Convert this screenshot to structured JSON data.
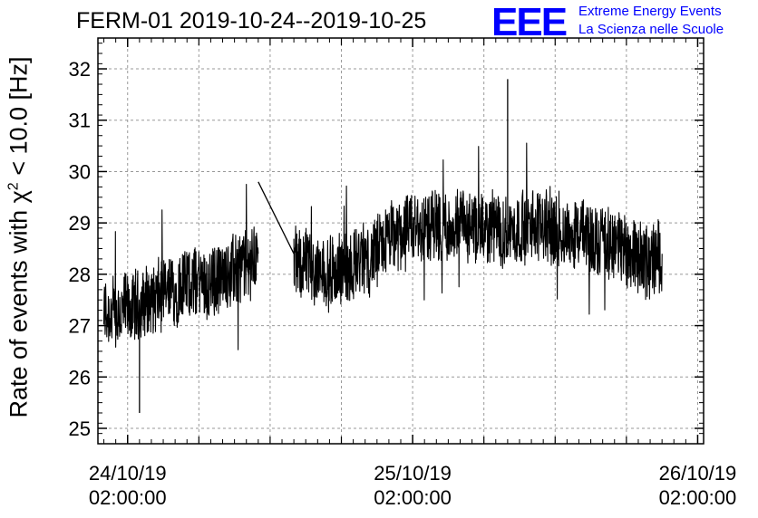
{
  "title": "FERM-01 2019-10-24--2019-10-25",
  "logo": {
    "mark": "EEE",
    "line1": "Extreme Energy Events",
    "line2": "La Scienza nelle Scuole",
    "color": "#0000ff"
  },
  "chart_data": {
    "type": "line",
    "title": "FERM-01 2019-10-24--2019-10-25",
    "xlabel": "",
    "ylabel_parts": [
      "Rate of events with χ",
      "2",
      " < 10.0 [Hz]"
    ],
    "ylim": [
      24.7,
      32.6
    ],
    "xlim": [
      "2019-10-23 23:30:00",
      "2019-10-26 02:30:00"
    ],
    "grid": true,
    "yticks": [
      25,
      26,
      27,
      28,
      29,
      30,
      31,
      32
    ],
    "xticks": [
      {
        "t": "2019-10-24 02:00:00",
        "label": [
          "24/10/19",
          "02:00:00"
        ]
      },
      {
        "t": "2019-10-25 02:00:00",
        "label": [
          "25/10/19",
          "02:00:00"
        ]
      },
      {
        "t": "2019-10-26 02:00:00",
        "label": [
          "26/10/19",
          "02:00:00"
        ]
      }
    ],
    "series": [
      {
        "color": "#000000",
        "x": [
          "2019-10-24 00:00:00",
          "2019-10-24 01:00:00",
          "2019-10-24 02:00:00",
          "2019-10-24 03:00:00",
          "2019-10-24 04:00:00",
          "2019-10-24 05:00:00",
          "2019-10-24 06:00:00",
          "2019-10-24 07:00:00",
          "2019-10-24 08:00:00",
          "2019-10-24 09:00:00",
          "2019-10-24 10:00:00",
          "2019-10-24 11:00:00",
          "2019-10-24 12:00:00",
          "2019-10-24 13:00:00",
          "2019-10-24 16:00:00",
          "2019-10-24 17:00:00",
          "2019-10-24 18:00:00",
          "2019-10-24 19:00:00",
          "2019-10-24 20:00:00",
          "2019-10-24 21:00:00",
          "2019-10-24 22:00:00",
          "2019-10-24 23:00:00",
          "2019-10-25 00:00:00",
          "2019-10-25 01:00:00",
          "2019-10-25 02:00:00",
          "2019-10-25 03:00:00",
          "2019-10-25 04:00:00",
          "2019-10-25 05:00:00",
          "2019-10-25 06:00:00",
          "2019-10-25 07:00:00",
          "2019-10-25 08:00:00",
          "2019-10-25 09:00:00",
          "2019-10-25 10:00:00",
          "2019-10-25 11:00:00",
          "2019-10-25 12:00:00",
          "2019-10-25 13:00:00",
          "2019-10-25 14:00:00",
          "2019-10-25 15:00:00",
          "2019-10-25 16:00:00",
          "2019-10-25 17:00:00",
          "2019-10-25 18:00:00",
          "2019-10-25 19:00:00",
          "2019-10-25 20:00:00",
          "2019-10-25 21:00:00",
          "2019-10-25 22:00:00",
          "2019-10-25 23:00:00"
        ],
        "y": [
          27.3,
          27.2,
          27.3,
          27.4,
          27.5,
          27.6,
          27.7,
          27.8,
          27.9,
          27.8,
          28.0,
          28.1,
          28.2,
          28.4,
          28.2,
          28.2,
          28.0,
          28.0,
          28.1,
          28.2,
          28.3,
          28.4,
          28.7,
          28.8,
          28.9,
          28.9,
          29.0,
          28.9,
          29.0,
          28.8,
          28.9,
          28.9,
          28.8,
          28.9,
          28.9,
          29.0,
          28.9,
          28.8,
          28.8,
          28.7,
          28.7,
          28.6,
          28.5,
          28.4,
          28.2,
          28.4
        ],
        "min": 25.3,
        "max": 31.8
      }
    ]
  }
}
